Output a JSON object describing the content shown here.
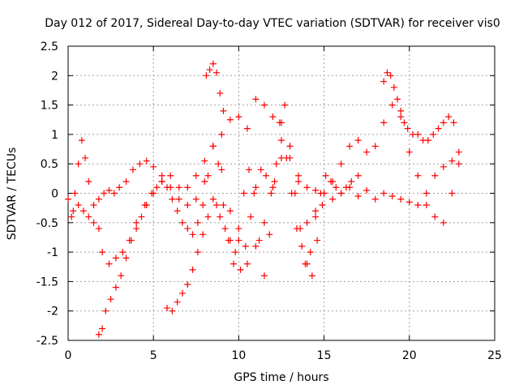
{
  "chart_data": {
    "type": "scatter",
    "title": "Day 012 of 2017, Sidereal Day-to-day VTEC variation (SDTVAR) for receiver vis0",
    "xlabel": "GPS time / hours",
    "ylabel": "SDTVAR / TECUs",
    "xlim": [
      0,
      25
    ],
    "ylim": [
      -2.5,
      2.5
    ],
    "x_ticks": [
      "0",
      "5",
      "10",
      "15",
      "20",
      "25"
    ],
    "y_ticks": [
      "2.5",
      "2",
      "1.5",
      "1",
      "0.5",
      "0",
      "-0.5",
      "-1",
      "-1.5",
      "-2",
      "-2.5"
    ],
    "grid": true,
    "marker": "+",
    "color": "#ff0000",
    "series": [
      {
        "x": [
          0.0,
          0.3,
          0.6,
          0.9,
          1.2,
          1.5,
          1.8,
          2.1,
          2.4,
          2.7,
          3.0,
          3.4,
          3.8,
          4.2,
          4.6,
          5.0,
          5.5,
          6.0,
          6.5,
          7.0,
          7.5,
          8.0,
          8.5,
          9.0,
          9.5,
          10.0,
          10.5,
          11.0,
          11.5,
          12.0,
          12.5,
          13.0,
          13.5,
          14.0,
          14.5,
          15.0,
          15.5,
          16.0,
          16.5,
          17.0,
          17.5,
          18.0,
          18.5,
          19.0,
          19.5,
          20.0,
          20.5,
          21.0,
          21.5,
          22.0,
          22.5,
          22.9
        ],
        "y": [
          -0.1,
          -0.3,
          -0.2,
          -0.3,
          -0.4,
          -0.5,
          -0.1,
          0.0,
          0.05,
          0.0,
          0.1,
          0.2,
          0.4,
          0.5,
          0.55,
          0.45,
          0.3,
          0.1,
          -0.1,
          0.1,
          0.3,
          0.55,
          0.8,
          1.0,
          1.25,
          1.3,
          1.1,
          1.6,
          1.5,
          1.3,
          1.2,
          0.6,
          0.3,
          0.1,
          0.05,
          0.0,
          -0.1,
          0.0,
          0.1,
          -0.05,
          0.05,
          -0.1,
          0.0,
          -0.05,
          -0.1,
          -0.15,
          -0.2,
          0.0,
          0.3,
          0.45,
          0.55,
          0.7
        ]
      },
      {
        "x": [
          0.2,
          0.4,
          0.6,
          0.8,
          1.0,
          1.2,
          1.5,
          1.8,
          2.0,
          2.4,
          2.8,
          3.2,
          3.6,
          4.0,
          4.5,
          5.0,
          5.5,
          6.0,
          6.5,
          7.0,
          7.5,
          8.0,
          8.5,
          9.0,
          9.5,
          10.0,
          10.5,
          11.0,
          11.5,
          12.0,
          12.5,
          13.0,
          13.5,
          14.0,
          14.5,
          15.0,
          15.5,
          16.0,
          16.5,
          17.0,
          17.5,
          18.0,
          18.5,
          19.0,
          19.5,
          20.0,
          20.5,
          21.0,
          21.5,
          22.0,
          22.5,
          22.9
        ],
        "y": [
          -0.4,
          0.0,
          0.5,
          0.9,
          0.6,
          0.2,
          -0.2,
          -0.6,
          -1.0,
          -1.2,
          -1.1,
          -1.0,
          -0.8,
          -0.5,
          -0.2,
          0.0,
          0.2,
          0.3,
          0.1,
          -0.2,
          -0.1,
          0.2,
          0.8,
          0.4,
          -0.3,
          -0.8,
          -1.2,
          -0.9,
          -0.5,
          0.1,
          0.6,
          0.8,
          0.2,
          -0.5,
          -0.3,
          0.0,
          0.2,
          0.5,
          0.8,
          0.9,
          0.7,
          0.8,
          1.2,
          1.5,
          1.3,
          0.7,
          0.3,
          -0.2,
          -0.4,
          -0.5,
          0.0,
          0.5
        ]
      },
      {
        "x": [
          1.8,
          2.0,
          2.2,
          2.5,
          2.8,
          3.1,
          3.4,
          3.7,
          4.0,
          4.3,
          4.6,
          4.9,
          5.2,
          5.5,
          5.8,
          6.1,
          6.4,
          6.7,
          7.0,
          7.3,
          7.6,
          7.9,
          8.2,
          8.5,
          8.8,
          9.1,
          9.4,
          9.7,
          10.0,
          10.3,
          10.6,
          10.9,
          11.2,
          11.5,
          11.8,
          12.1,
          12.4,
          12.7,
          13.0,
          13.3,
          13.6,
          13.9,
          14.2,
          14.5,
          14.8,
          15.1,
          15.4,
          15.7,
          16.0,
          16.3,
          16.6,
          17.0
        ],
        "y": [
          -2.4,
          -2.3,
          -2.0,
          -1.8,
          -1.6,
          -1.4,
          -1.1,
          -0.8,
          -0.6,
          -0.4,
          -0.2,
          0.0,
          0.1,
          0.2,
          0.1,
          -0.1,
          -0.3,
          -0.5,
          -0.6,
          -0.7,
          -0.5,
          -0.2,
          0.3,
          0.8,
          0.5,
          -0.2,
          -0.8,
          -1.2,
          -0.6,
          0.0,
          0.4,
          0.0,
          -0.8,
          -1.4,
          -0.7,
          0.2,
          1.2,
          1.5,
          0.8,
          0.0,
          -0.6,
          -1.2,
          -1.0,
          -0.4,
          0.0,
          0.3,
          0.2,
          0.1,
          0.0,
          0.1,
          0.2,
          0.3
        ]
      },
      {
        "x": [
          5.8,
          6.1,
          6.4,
          6.7,
          7.0,
          7.3,
          7.6,
          7.9,
          8.2,
          8.5,
          8.7,
          8.9,
          9.2,
          9.5,
          9.8,
          10.1,
          10.4,
          10.7,
          11.0,
          11.3,
          11.6,
          11.9,
          12.2,
          12.5,
          12.8,
          13.1,
          13.4,
          13.7,
          14.0,
          14.3,
          14.6,
          14.9
        ],
        "y": [
          -1.95,
          -2.0,
          -1.85,
          -1.7,
          -1.55,
          -1.3,
          -1.0,
          -0.7,
          -0.4,
          -0.1,
          -0.2,
          -0.4,
          -0.6,
          -0.8,
          -1.0,
          -1.3,
          -0.9,
          -0.4,
          0.1,
          0.4,
          0.3,
          0.0,
          0.5,
          0.9,
          0.6,
          0.0,
          -0.6,
          -0.9,
          -1.2,
          -1.4,
          -0.8,
          -0.2
        ]
      },
      {
        "x": [
          8.1,
          8.3,
          8.5,
          8.7,
          8.9,
          9.1
        ],
        "y": [
          2.0,
          2.1,
          2.2,
          2.05,
          1.7,
          1.4
        ]
      },
      {
        "x": [
          18.5,
          18.7,
          18.9,
          19.1,
          19.3,
          19.5,
          19.7,
          19.9,
          20.2,
          20.5,
          20.8,
          21.1,
          21.4,
          21.7,
          22.0,
          22.3,
          22.6
        ],
        "y": [
          1.9,
          2.05,
          2.0,
          1.8,
          1.6,
          1.4,
          1.2,
          1.1,
          1.0,
          1.0,
          0.9,
          0.9,
          1.0,
          1.1,
          1.2,
          1.3,
          1.2
        ]
      }
    ]
  }
}
